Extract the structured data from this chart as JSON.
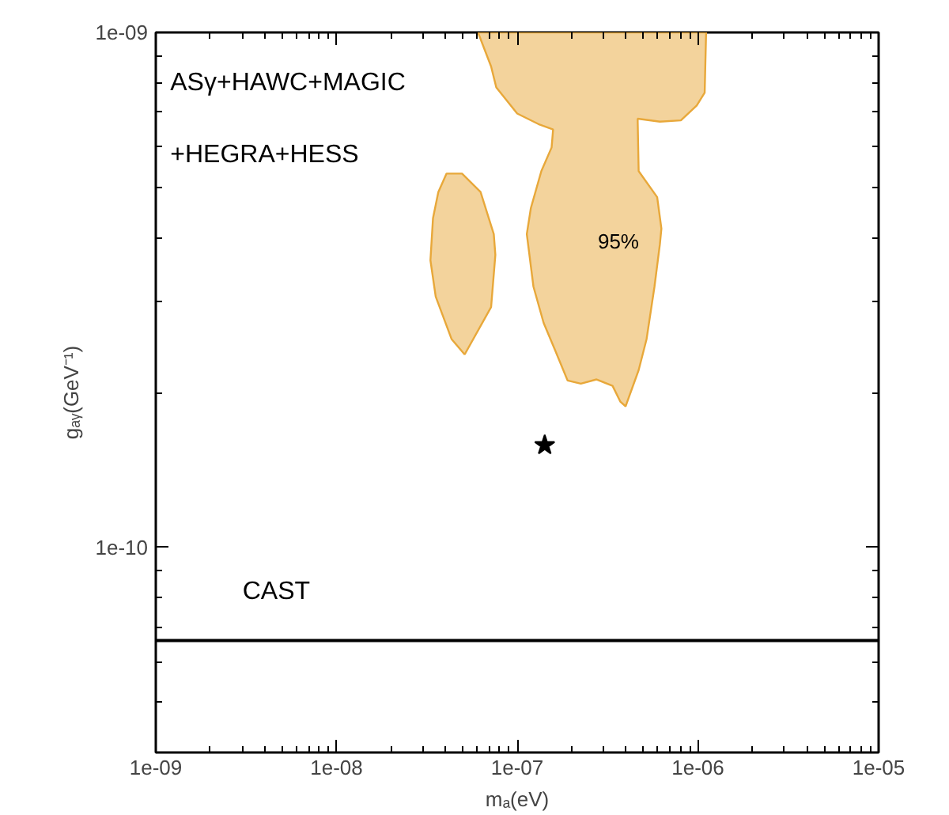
{
  "chart_data": {
    "type": "area",
    "xlabel": "mₐ(eV)",
    "ylabel": "gₐᵧ(GeV⁻¹)",
    "log": "xy",
    "grid": false,
    "xlim": [
      1e-09,
      1e-05
    ],
    "ylim": [
      4e-11,
      1e-09
    ],
    "xticks": [
      {
        "value": 1e-09,
        "label": "1e-09"
      },
      {
        "value": 1e-08,
        "label": "1e-08"
      },
      {
        "value": 1e-07,
        "label": "1e-07"
      },
      {
        "value": 1e-06,
        "label": "1e-06"
      },
      {
        "value": 1e-05,
        "label": "1e-05"
      }
    ],
    "yticks": [
      {
        "value": 1e-10,
        "label": "1e-10"
      },
      {
        "value": 1e-09,
        "label": "1e-09"
      }
    ],
    "series": [
      {
        "color": "#e8a83a",
        "x": [
          4.06e-08,
          4.95e-08,
          6.27e-08,
          7.42e-08,
          7.57e-08,
          7.17e-08,
          5.12e-08,
          4.33e-08,
          3.54e-08,
          3.31e-08,
          3.42e-08,
          3.66e-08
        ],
        "values": [
          5.32e-10,
          5.32e-10,
          4.9e-10,
          4.06e-10,
          3.7e-10,
          2.93e-10,
          2.37e-10,
          2.54e-10,
          3.07e-10,
          3.61e-10,
          4.36e-10,
          4.9e-10
        ]
      },
      {
        "color": "#e8a83a",
        "x": [
          6.07e-08,
          7.17e-08,
          7.66e-08,
          1e-07,
          1.31e-07,
          1.58e-07,
          1.55e-07,
          1.36e-07,
          1.19e-07,
          1.13e-07,
          1.23e-07,
          1.4e-07,
          1.61e-07,
          1.9e-07,
          2.25e-07,
          2.75e-07,
          3.37e-07,
          3.72e-07,
          3.98e-07,
          4.7e-07,
          5.2e-07,
          5.75e-07,
          6.16e-07,
          6.28e-07,
          5.95e-07,
          4.7e-07,
          4.64e-07,
          6.16e-07,
          8.05e-07,
          9.85e-07,
          1.09e-06,
          1.11e-06
        ],
        "values": [
          1e-09,
          8.59e-10,
          7.82e-10,
          6.96e-10,
          6.64e-10,
          6.48e-10,
          5.98e-10,
          5.38e-10,
          4.56e-10,
          4.06e-10,
          3.21e-10,
          2.73e-10,
          2.43e-10,
          2.11e-10,
          2.08e-10,
          2.12e-10,
          2.06e-10,
          1.92e-10,
          1.88e-10,
          2.21e-10,
          2.54e-10,
          3.21e-10,
          3.88e-10,
          4.16e-10,
          4.79e-10,
          5.38e-10,
          6.8e-10,
          6.71e-10,
          6.75e-10,
          7.21e-10,
          7.64e-10,
          1e-09
        ]
      },
      {
        "type": "scatter",
        "color": "#000000",
        "marker": "star",
        "x": [
          1.42e-07
        ],
        "values": [
          1.58e-10
        ]
      }
    ],
    "ref_lines": [
      {
        "axis": "y",
        "value": 6.6e-11,
        "label": "CAST",
        "color": "#000000"
      }
    ],
    "annotations": [
      "ASγ+HAWC+MAGIC",
      "+HEGRA+HESS",
      "95%"
    ]
  }
}
